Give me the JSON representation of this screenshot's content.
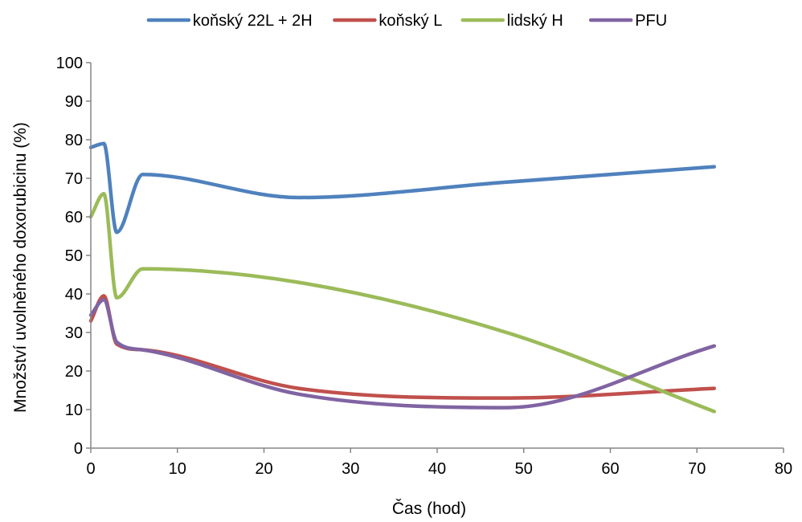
{
  "chart_data": {
    "type": "line",
    "title": "",
    "xlabel": "Čas (hod)",
    "ylabel": "Množství uvolněného doxorubicinu (%)",
    "xlim": [
      0,
      80
    ],
    "ylim": [
      0,
      100
    ],
    "xticks": [
      0,
      10,
      20,
      30,
      40,
      50,
      60,
      70,
      80
    ],
    "yticks": [
      0,
      10,
      20,
      30,
      40,
      50,
      60,
      70,
      80,
      90,
      100
    ],
    "grid": false,
    "smooth": true,
    "legend_position": "top",
    "series": [
      {
        "name": "koňský 22L + 2H",
        "color": "#4F81BD",
        "points": [
          [
            0,
            78
          ],
          [
            1.5,
            79
          ],
          [
            3,
            56
          ],
          [
            6,
            71
          ],
          [
            24,
            65
          ],
          [
            48,
            69
          ],
          [
            72,
            73
          ]
        ]
      },
      {
        "name": "koňský L",
        "color": "#C0504D",
        "points": [
          [
            0,
            33
          ],
          [
            1.5,
            39.5
          ],
          [
            3,
            27
          ],
          [
            6,
            25.5
          ],
          [
            24,
            15.5
          ],
          [
            48,
            13
          ],
          [
            72,
            15.5
          ]
        ]
      },
      {
        "name": "lidský H",
        "color": "#9BBB59",
        "points": [
          [
            0,
            60
          ],
          [
            1.5,
            66
          ],
          [
            3,
            39
          ],
          [
            6,
            46.5
          ],
          [
            24,
            43
          ],
          [
            48,
            30
          ],
          [
            72,
            9.5
          ]
        ]
      },
      {
        "name": "PFU",
        "color": "#8064A2",
        "points": [
          [
            0,
            34.5
          ],
          [
            1.5,
            38.5
          ],
          [
            3,
            27.5
          ],
          [
            6,
            25.5
          ],
          [
            24,
            14
          ],
          [
            48,
            10.5
          ],
          [
            72,
            26.5
          ]
        ]
      }
    ]
  }
}
